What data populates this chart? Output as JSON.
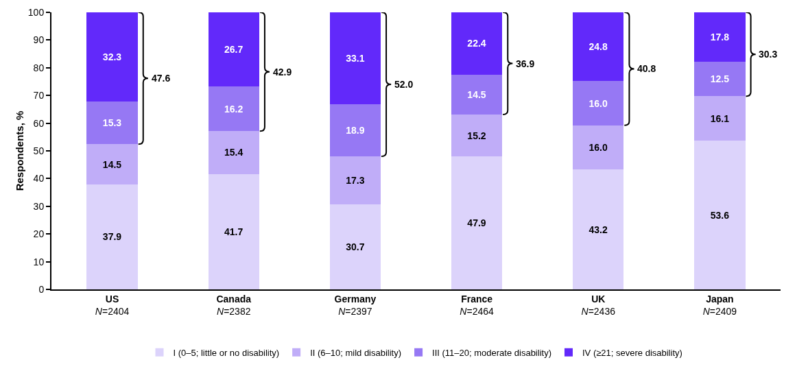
{
  "chart_data": {
    "type": "bar",
    "stacked": true,
    "ylabel": "Respondents, %",
    "categories": [
      "US\nN=2404",
      "Canada\nN=2382",
      "Germany\nN=2397",
      "France\nN=2464",
      "UK\nN=2436",
      "Japan\nN=2409"
    ],
    "series": [
      {
        "name": "I (0–5; little or no disability)",
        "color": "#dcd3fb",
        "values": [
          37.9,
          41.7,
          30.7,
          47.9,
          43.2,
          53.6
        ],
        "value_labels": [
          "37.9",
          "41.7",
          "30.7",
          "47.9",
          "43.2",
          "53.6"
        ]
      },
      {
        "name": "II (6–10; mild disability)",
        "color": "#c0adf8",
        "values": [
          14.5,
          15.4,
          17.3,
          15.2,
          16.0,
          16.1
        ],
        "value_labels": [
          "14.5",
          "15.4",
          "17.3",
          "15.2",
          "16.0",
          "16.1"
        ]
      },
      {
        "name": "III (11–20; moderate disability)",
        "color": "#9678f4",
        "values": [
          15.3,
          16.2,
          18.9,
          14.5,
          16.0,
          12.5
        ],
        "value_labels": [
          "15.3",
          "16.2",
          "18.9",
          "14.5",
          "16.0",
          "12.5"
        ]
      },
      {
        "name": "IV (≥21; severe disability)",
        "color": "#6229fa",
        "values": [
          32.3,
          26.7,
          33.1,
          22.4,
          24.8,
          17.8
        ],
        "value_labels": [
          "32.3",
          "26.7",
          "33.1",
          "22.4",
          "24.8",
          "17.8"
        ]
      }
    ],
    "annotations": [
      "47.6",
      "42.9",
      "52.0",
      "36.9",
      "40.8",
      "30.3"
    ],
    "ylim": [
      0,
      100
    ],
    "yticks": [
      0,
      10,
      20,
      30,
      40,
      50,
      60,
      70,
      80,
      90,
      100
    ],
    "grid": false,
    "legend": "bottom"
  }
}
